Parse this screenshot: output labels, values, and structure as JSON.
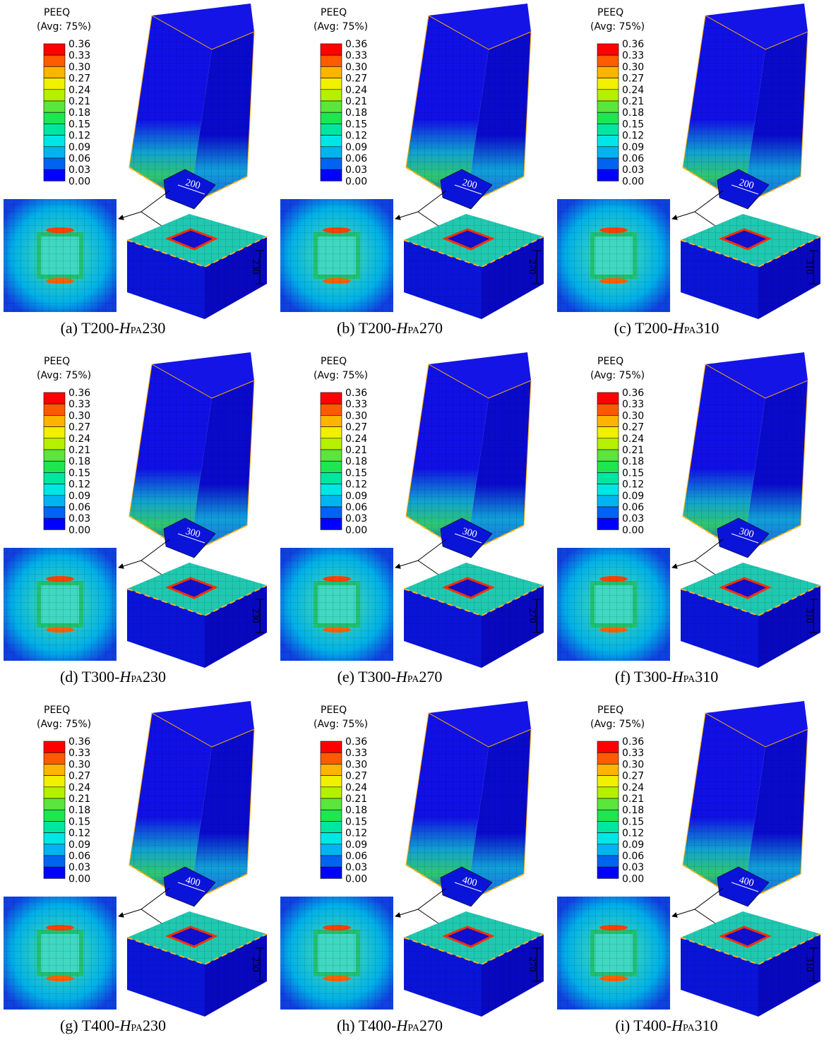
{
  "legend": {
    "title": "PEEQ",
    "subtitle": "(Avg: 75%)",
    "labels": [
      "0.36",
      "0.33",
      "0.30",
      "0.27",
      "0.24",
      "0.21",
      "0.18",
      "0.15",
      "0.12",
      "0.09",
      "0.06",
      "0.03",
      "0.00"
    ],
    "colors": [
      "#ff0000",
      "#ff5a00",
      "#ffb400",
      "#f0f000",
      "#b4f000",
      "#5ae63c",
      "#1ee650",
      "#00e6a0",
      "#00e6e6",
      "#00b4f0",
      "#0064f0",
      "#0000ff"
    ]
  },
  "panels": [
    {
      "caption": {
        "prefix": "(a) T200-",
        "symbol": "H",
        "subscript": "PA",
        "value": "230"
      },
      "column_width": "200",
      "base_height": "230"
    },
    {
      "caption": {
        "prefix": "(b) T200-",
        "symbol": "H",
        "subscript": "PA",
        "value": "270"
      },
      "column_width": "200",
      "base_height": "270"
    },
    {
      "caption": {
        "prefix": "(c) T200-",
        "symbol": "H",
        "subscript": "PA",
        "value": "310"
      },
      "column_width": "200",
      "base_height": "310"
    },
    {
      "caption": {
        "prefix": "(d) T300-",
        "symbol": "H",
        "subscript": "PA",
        "value": "230"
      },
      "column_width": "300",
      "base_height": "230"
    },
    {
      "caption": {
        "prefix": "(e) T300-",
        "symbol": "H",
        "subscript": "PA",
        "value": "270"
      },
      "column_width": "300",
      "base_height": "270"
    },
    {
      "caption": {
        "prefix": "(f) T300-",
        "symbol": "H",
        "subscript": "PA",
        "value": "310"
      },
      "column_width": "300",
      "base_height": "310"
    },
    {
      "caption": {
        "prefix": "(g) T400-",
        "symbol": "H",
        "subscript": "PA",
        "value": "230"
      },
      "column_width": "400",
      "base_height": "230"
    },
    {
      "caption": {
        "prefix": "(h) T400-",
        "symbol": "H",
        "subscript": "PA",
        "value": "270"
      },
      "column_width": "400",
      "base_height": "270"
    },
    {
      "caption": {
        "prefix": "(i) T400-",
        "symbol": "H",
        "subscript": "PA",
        "value": "310"
      },
      "column_width": "400",
      "base_height": "310"
    }
  ]
}
